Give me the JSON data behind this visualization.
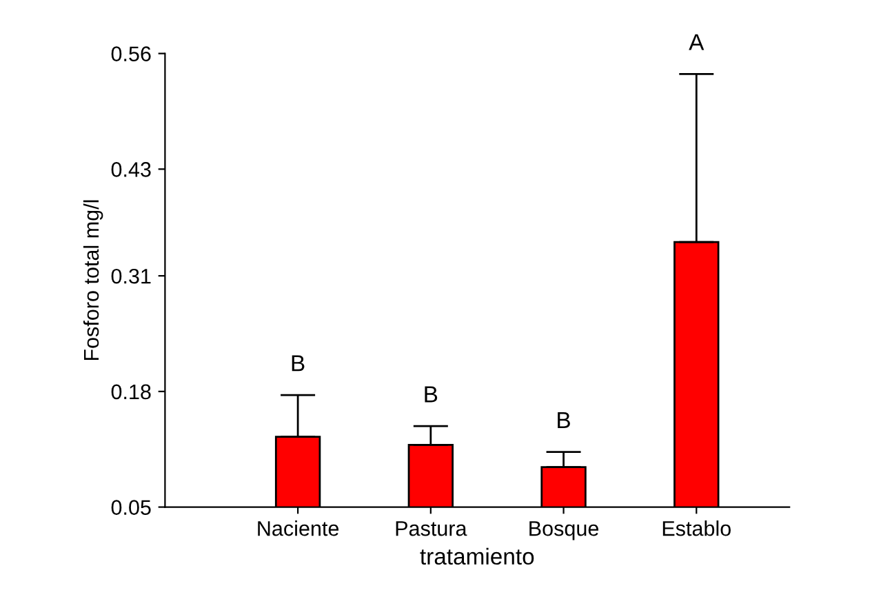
{
  "chart_data": {
    "type": "bar",
    "xlabel": "tratamiento",
    "ylabel": "Fosforo total mg/l",
    "categories": [
      "Naciente",
      "Pastura",
      "Bosque",
      "Establo"
    ],
    "values": [
      0.129,
      0.12,
      0.095,
      0.348
    ],
    "errors": [
      [
        0.129,
        0.176
      ],
      [
        0.12,
        0.141
      ],
      [
        0.095,
        0.112
      ],
      [
        0.348,
        0.537
      ]
    ],
    "color": "#ff0000",
    "ylim": [
      0.05,
      0.56
    ],
    "yticks": [
      0.05,
      0.18,
      0.31,
      0.43,
      0.56
    ],
    "annotations": [
      {
        "text": "B",
        "x": "Naciente",
        "y": 0.176
      },
      {
        "text": "B",
        "x": "Pastura",
        "y": 0.141
      },
      {
        "text": "B",
        "x": "Bosque",
        "y": 0.112
      },
      {
        "text": "A",
        "x": "Establo",
        "y": 0.537
      }
    ],
    "grid": false,
    "legend": false
  }
}
